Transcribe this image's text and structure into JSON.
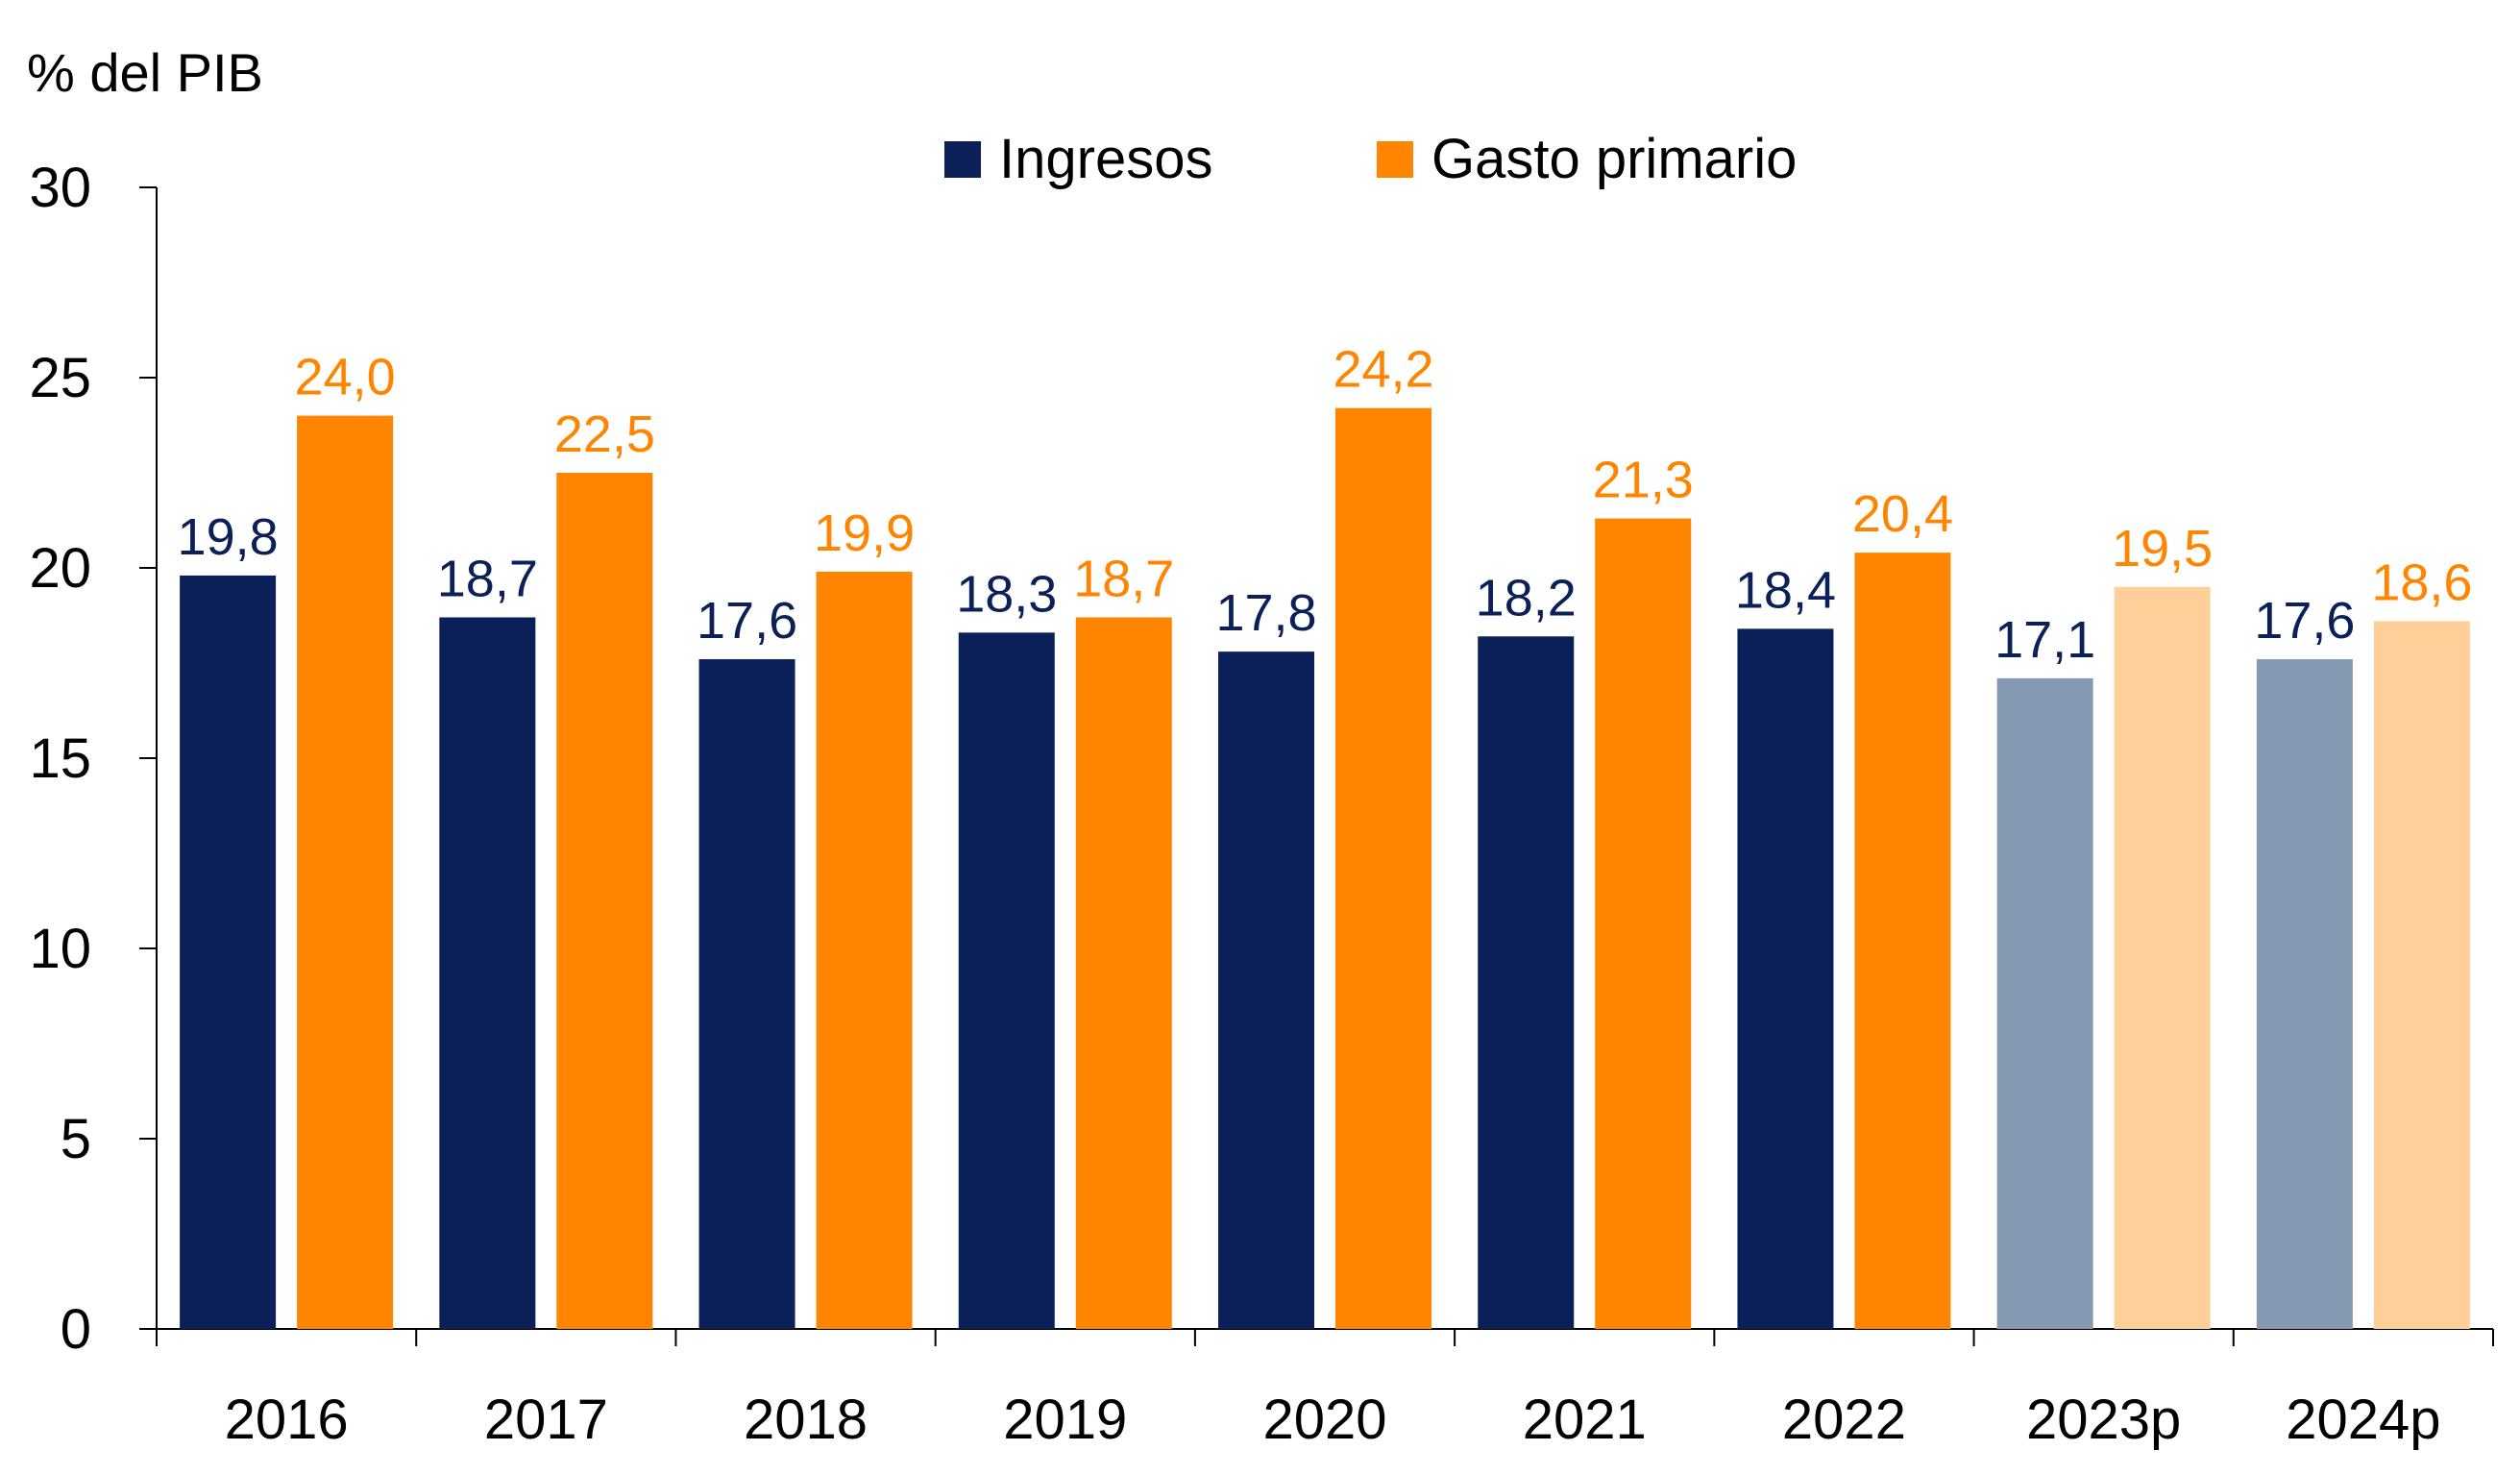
{
  "chart_data": {
    "type": "bar",
    "ylabel": "% del PIB",
    "ylim": [
      0,
      30
    ],
    "yticks": [
      0,
      5,
      10,
      15,
      20,
      25,
      30
    ],
    "grid": false,
    "legend_position": "top-center",
    "categories": [
      "2016",
      "2017",
      "2018",
      "2019",
      "2020",
      "2021",
      "2022",
      "2023p",
      "2024p"
    ],
    "projected_categories": [
      "2023p",
      "2024p"
    ],
    "series": [
      {
        "name": "Ingresos",
        "color": "#0b2059",
        "projected_color": "#8699b3",
        "values": [
          19.8,
          18.7,
          17.6,
          18.3,
          17.8,
          18.2,
          18.4,
          17.1,
          17.6
        ],
        "labels": [
          "19,8",
          "18,7",
          "17,6",
          "18,3",
          "17,8",
          "18,2",
          "18,4",
          "17,1",
          "17,6"
        ]
      },
      {
        "name": "Gasto primario",
        "color": "#ff8400",
        "projected_color": "#ffcf99",
        "values": [
          24.0,
          22.5,
          19.9,
          18.7,
          24.2,
          21.3,
          20.4,
          19.5,
          18.6
        ],
        "labels": [
          "24,0",
          "22,5",
          "19,9",
          "18,7",
          "24,2",
          "21,3",
          "20,4",
          "19,5",
          "18,6"
        ]
      }
    ]
  }
}
